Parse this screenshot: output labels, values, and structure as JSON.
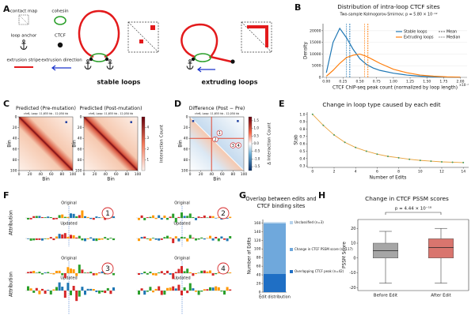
{
  "figure": {
    "panel_labels": [
      "A",
      "B",
      "C",
      "D",
      "E",
      "F",
      "G",
      "H"
    ]
  },
  "panel_a": {
    "legend": [
      "contact map",
      "cohesin",
      "loop anchor",
      "CTCF",
      "extrusion stripe",
      "extrusion direction"
    ],
    "loop_types": [
      "stable loops",
      "extruding loops"
    ]
  },
  "panel_c": {
    "titles": [
      "Predicted (Pre-mutation)",
      "Predicted (Post-mutation)"
    ],
    "subtitle": "chr6, Loop: 11,655 kb - 12,050 kb",
    "axis_label": "Bin",
    "ticks": [
      0,
      20,
      40,
      60,
      80,
      100
    ],
    "colorbar_label": "Interaction Count",
    "colorbar_lim": [
      0,
      5
    ],
    "colorbar_ticks": [
      1,
      2,
      3,
      4
    ]
  },
  "panel_d": {
    "title": "Difference (Post − Pre)",
    "subtitle": "chr6, Loop: 11,655 kb - 12,050 kb",
    "axis_label": "Bin",
    "ticks": [
      0,
      20,
      40,
      60,
      80,
      100
    ],
    "colorbar_label": "Δ Interaction Count",
    "colorbar_lim": [
      -1.75,
      1.75
    ],
    "colorbar_ticks": [
      1.5,
      {
        "value": 1,
        "label": "1.0"
      },
      0.5,
      {
        "value": 0,
        "label": "0.0"
      },
      -0.5,
      {
        "value": -1,
        "label": "-1.0"
      },
      -1.5
    ],
    "edit_markers": [
      "1",
      "2",
      "3",
      "4"
    ]
  },
  "panel_f": {
    "y_label": "Attribution",
    "original": "Original",
    "updated": "Updated",
    "edit_markers": [
      "1",
      "2",
      "3",
      "4"
    ]
  },
  "chart_data": [
    {
      "type": "line",
      "title": "Distribution of intra-loop CTCF sites",
      "subtitle": "Two-sample Kolmogorov-Smirnov; p = 5.80 × 10⁻¹²",
      "x_label": "CTCF ChIP-seq peak count (normalized by loop length)",
      "y_label": "Density",
      "x_scale_label": "×10⁻²",
      "x": [
        0,
        0.1,
        0.2,
        0.3,
        0.4,
        0.5,
        0.6,
        0.7,
        0.8,
        1.0,
        1.2,
        1.4,
        1.6,
        1.8,
        2.0
      ],
      "series": [
        {
          "name": "Stable loops",
          "color": "#1f77b4",
          "mean": 0.35,
          "median": 0.3,
          "values": [
            2000,
            15000,
            21000,
            17000,
            12000,
            8000,
            5500,
            4000,
            3000,
            1800,
            1000,
            500,
            200,
            100,
            50
          ]
        },
        {
          "name": "Extruding loops",
          "color": "#ff7f0e",
          "mean": 0.62,
          "median": 0.57,
          "values": [
            500,
            3000,
            6000,
            8500,
            9500,
            10000,
            9000,
            7500,
            6000,
            3500,
            2000,
            1000,
            500,
            200,
            100
          ]
        }
      ],
      "reference_lines": [
        {
          "name": "Mean",
          "style": "dashed"
        },
        {
          "name": "Median",
          "style": "dotted"
        }
      ],
      "xlim": [
        -0.05,
        2.1
      ],
      "ylim": [
        0,
        23000
      ],
      "xticks": [
        {
          "value": 0,
          "label": "0.00"
        },
        0.25,
        {
          "value": 0.5,
          "label": "0.50"
        },
        0.75,
        {
          "value": 1,
          "label": "1.00"
        },
        1.25,
        {
          "value": 1.5,
          "label": "1.50"
        },
        1.75,
        {
          "value": 2,
          "label": "2.00"
        }
      ],
      "yticks": [
        0,
        5000,
        10000,
        15000,
        20000
      ]
    },
    {
      "type": "line",
      "title": "Change in loop type caused by each edit",
      "x_label": "Number of Edits",
      "y_label": "Stab",
      "x": [
        0,
        1,
        2,
        3,
        4,
        5,
        6,
        7,
        8,
        9,
        10,
        11,
        12,
        13,
        14
      ],
      "series": [
        {
          "color": "#e8a33d",
          "marker_color": "#4a9a5a",
          "values": [
            1.0,
            0.85,
            0.72,
            0.62,
            0.55,
            0.5,
            0.46,
            0.43,
            0.41,
            0.39,
            0.375,
            0.365,
            0.355,
            0.35,
            0.345
          ]
        }
      ],
      "xlim": [
        -0.5,
        14.5
      ],
      "ylim": [
        0.28,
        1.03
      ],
      "xticks": [
        0,
        2,
        4,
        6,
        8,
        10,
        12,
        14
      ],
      "yticks": [
        0.3,
        0.4,
        0.5,
        0.6,
        0.7,
        0.8,
        0.9,
        {
          "value": 1,
          "label": "1.0"
        }
      ]
    },
    {
      "type": "stacked_bar",
      "title": [
        "Overlap between edits and",
        "CTCF binding sites"
      ],
      "y_label": "Number of Edits",
      "categories": [
        "Edit distribution"
      ],
      "series": [
        {
          "name": "Overlapping CTCF peak (n=42)",
          "color": "#1f6fc5",
          "values": [
            42
          ]
        },
        {
          "name": "Change in CTCF PSSM score (n=117)",
          "color": "#6fa8dc",
          "values": [
            117
          ]
        },
        {
          "name": "Unclassified (n=3)",
          "color": "#b7d3ec",
          "values": [
            3
          ]
        }
      ],
      "ylim": [
        0,
        168
      ],
      "yticks": [
        0,
        20,
        40,
        60,
        80,
        100,
        120,
        140,
        160
      ]
    },
    {
      "type": "box",
      "title": "Change in CTCF PSSM scores",
      "annotation": "p = 4.44 × 10⁻¹⁸",
      "y_label": "PSSM Score",
      "categories": [
        "Before Edit",
        "After Edit"
      ],
      "colors": [
        "#a6a6a6",
        "#d9756e"
      ],
      "boxes": [
        {
          "min": -17,
          "q1": 0,
          "median": 5,
          "q3": 10,
          "max": 18
        },
        {
          "min": -17,
          "q1": 0,
          "median": 7,
          "q3": 13,
          "max": 20
        }
      ],
      "ylim": [
        -22,
        26
      ],
      "yticks": [
        -20,
        -10,
        0,
        10,
        20
      ]
    }
  ]
}
